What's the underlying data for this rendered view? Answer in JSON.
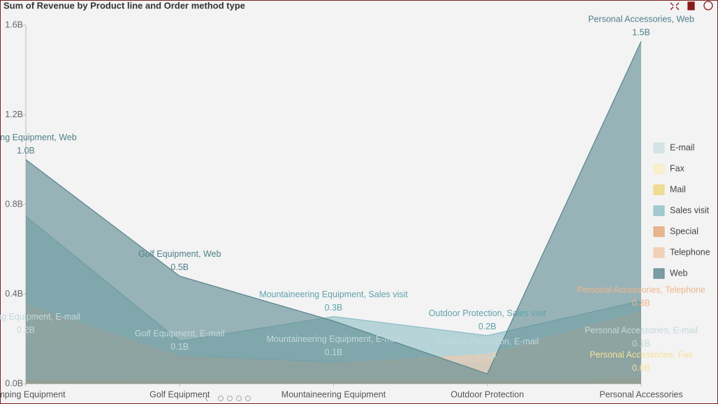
{
  "chart_data": {
    "type": "area",
    "title": "Sum of Revenue by Product line and Order method type",
    "categories": [
      "Camping Equipment",
      "Golf Equipment",
      "Mountaineering Equipment",
      "Outdoor Protection",
      "Personal Accessories"
    ],
    "ylim": [
      0,
      1.6
    ],
    "yticks": [
      {
        "value": 0,
        "label": "0.0B"
      },
      {
        "value": 0.4,
        "label": "0.4B"
      },
      {
        "value": 0.8,
        "label": "0.8B"
      },
      {
        "value": 1.2,
        "label": "1.2B"
      },
      {
        "value": 1.6,
        "label": "1.6B"
      }
    ],
    "legend": "right",
    "series": [
      {
        "name": "E-mail",
        "color": "#c9dfe1",
        "label_color": "#c3d9dc",
        "values": [
          0.2,
          0.125,
          0.1,
          0.09,
          0.14
        ],
        "point_labels": [
          "Camping Equipment, E-mail",
          "Golf Equipment, E-mail",
          "Mountaineering Equipment, E-mail",
          "Outdoor Protection, E-mail",
          "Personal Accessories, E-mail"
        ],
        "value_labels": [
          "0.2B",
          "0.1B",
          "0.1B",
          "0.1B",
          "0.1B"
        ]
      },
      {
        "name": "Fax",
        "color": "#f7edc6",
        "label_color": "#f3e29a",
        "values": [
          0.02,
          0.01,
          0.01,
          0.01,
          0.03
        ],
        "point_labels": [
          null,
          null,
          null,
          null,
          "Personal Accessories, Fax"
        ],
        "value_labels": [
          null,
          null,
          null,
          null,
          "0.0B"
        ]
      },
      {
        "name": "Mail",
        "color": "#ecd77c",
        "label_color": "#e6cf6a",
        "values": [
          0.01,
          0.005,
          0.005,
          0.005,
          0.01
        ],
        "point_labels": [
          null,
          null,
          null,
          null,
          null
        ],
        "value_labels": [
          null,
          null,
          null,
          null,
          null
        ]
      },
      {
        "name": "Sales visit",
        "color": "#8dbfc6",
        "label_color": "#5fa2ab",
        "values": [
          0.747,
          0.19,
          0.3,
          0.215,
          0.37
        ],
        "point_labels": [
          null,
          null,
          "Mountaineering Equipment, Sales visit",
          "Outdoor Protection, Sales visit",
          null
        ],
        "value_labels": [
          null,
          null,
          "0.3B",
          "0.2B",
          null
        ]
      },
      {
        "name": "Special",
        "color": "#e3a676",
        "label_color": "#e3a676",
        "values": [
          0.015,
          0.01,
          0.01,
          0.01,
          0.02
        ],
        "point_labels": [
          null,
          null,
          null,
          null,
          null
        ],
        "value_labels": [
          null,
          null,
          null,
          null,
          null
        ]
      },
      {
        "name": "Telephone",
        "color": "#f2c8aa",
        "label_color": "#efb68c",
        "values": [
          0.35,
          0.12,
          0.09,
          0.13,
          0.32
        ],
        "point_labels": [
          null,
          null,
          null,
          null,
          "Personal Accessories, Telephone"
        ],
        "value_labels": [
          null,
          null,
          null,
          null,
          "0.3B"
        ]
      },
      {
        "name": "Web",
        "color": "#5b8890",
        "label_color": "#4f7f88",
        "values": [
          1.0,
          0.48,
          0.28,
          0.044,
          1.528
        ],
        "point_labels": [
          "Camping Equipment, Web",
          "Golf Equipment, Web",
          null,
          null,
          "Personal Accessories, Web"
        ],
        "value_labels": [
          "1.0B",
          "0.5B",
          null,
          null,
          "1.5B"
        ]
      }
    ]
  }
}
